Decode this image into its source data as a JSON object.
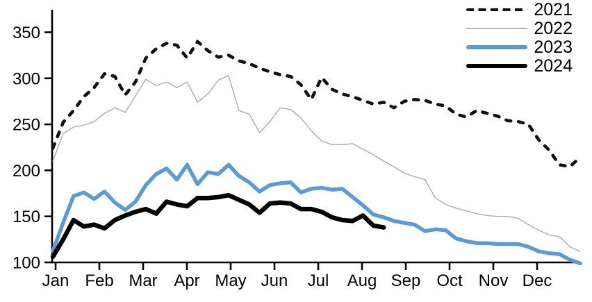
{
  "chart_data": {
    "type": "line",
    "title": "",
    "xlabel": "",
    "ylabel": "",
    "x_unit": "week",
    "xticklabels": [
      "Jan",
      "Feb",
      "Mar",
      "Apr",
      "May",
      "Jun",
      "Jul",
      "Aug",
      "Sep",
      "Oct",
      "Nov",
      "Dec"
    ],
    "yticks": [
      100,
      150,
      200,
      250,
      300,
      350
    ],
    "ylim": [
      100,
      374
    ],
    "grid": false,
    "legend_position": "top-right",
    "axis_color": "#000000",
    "series": [
      {
        "name": "2021",
        "color": "#111111",
        "style": "dashed",
        "width": 4.6,
        "values": [
          224,
          252,
          265,
          280,
          290,
          305,
          302,
          282,
          296,
          322,
          332,
          338,
          336,
          322,
          340,
          330,
          323,
          325,
          319,
          316,
          311,
          307,
          304,
          302,
          293,
          277,
          301,
          288,
          283,
          280,
          276,
          272,
          274,
          268,
          275,
          277,
          276,
          272,
          270,
          261,
          258,
          265,
          262,
          259,
          254,
          253,
          250,
          233,
          222,
          206,
          204,
          214
        ]
      },
      {
        "name": "2022",
        "color": "#ababab",
        "style": "solid",
        "width": 1.4,
        "values": [
          210,
          240,
          247,
          249,
          253,
          262,
          268,
          263,
          281,
          299,
          292,
          296,
          290,
          296,
          274,
          283,
          298,
          303,
          265,
          261,
          241,
          253,
          268,
          266,
          257,
          243,
          232,
          228,
          228,
          229,
          223,
          217,
          210,
          204,
          197,
          193,
          190,
          170,
          163,
          159,
          156,
          153,
          151,
          150,
          150,
          148,
          141,
          135,
          130,
          128,
          117,
          112
        ]
      },
      {
        "name": "2023",
        "color": "#5b9bd5",
        "style": "solid",
        "width": 5.5,
        "values": [
          112,
          143,
          172,
          176,
          169,
          177,
          165,
          157,
          166,
          184,
          196,
          202,
          190,
          206,
          185,
          198,
          196,
          206,
          194,
          187,
          177,
          184,
          186,
          187,
          176,
          180,
          181,
          179,
          180,
          171,
          162,
          152,
          149,
          145,
          143,
          141,
          134,
          136,
          135,
          126,
          123,
          121,
          121,
          120,
          120,
          120,
          117,
          112,
          110,
          109,
          103,
          99
        ]
      },
      {
        "name": "2024",
        "color": "#000000",
        "style": "solid",
        "width": 6.5,
        "values": [
          106,
          125,
          146,
          139,
          141,
          137,
          146,
          151,
          155,
          158,
          153,
          166,
          163,
          161,
          170,
          170,
          171,
          173,
          168,
          163,
          154,
          164,
          165,
          164,
          158,
          158,
          155,
          149,
          146,
          145,
          151,
          140,
          138
        ]
      }
    ]
  },
  "legend": {
    "items": [
      {
        "label": "2021"
      },
      {
        "label": "2022"
      },
      {
        "label": "2023"
      },
      {
        "label": "2024"
      }
    ]
  }
}
